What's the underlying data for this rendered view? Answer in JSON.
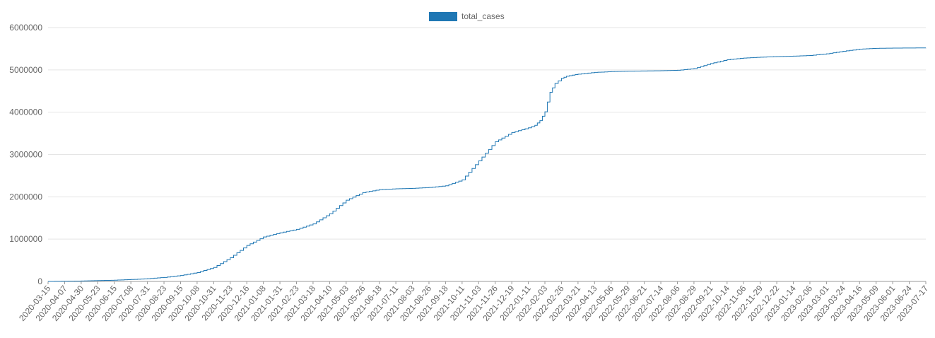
{
  "chart_data": {
    "type": "line",
    "title": "",
    "xlabel": "",
    "ylabel": "",
    "legend": {
      "position": "top-center",
      "label": "total_cases"
    },
    "colors": {
      "series": "#1f77b4",
      "grid": "#e5e5e5",
      "axis": "#999999",
      "text": "#666666"
    },
    "grid": true,
    "ylim": [
      0,
      6000000
    ],
    "yticks": [
      0,
      1000000,
      2000000,
      3000000,
      4000000,
      5000000,
      6000000
    ],
    "xlim": [
      "2020-03-15",
      "2023-07-17"
    ],
    "xticks": [
      "2020-03-15",
      "2020-04-07",
      "2020-04-30",
      "2020-05-23",
      "2020-06-15",
      "2020-07-08",
      "2020-07-31",
      "2020-08-23",
      "2020-09-15",
      "2020-10-08",
      "2020-10-31",
      "2020-11-23",
      "2020-12-16",
      "2021-01-08",
      "2021-01-31",
      "2021-02-23",
      "2021-03-18",
      "2021-04-10",
      "2021-05-03",
      "2021-05-26",
      "2021-06-18",
      "2021-07-11",
      "2021-08-03",
      "2021-08-26",
      "2021-09-18",
      "2021-10-11",
      "2021-11-03",
      "2021-11-26",
      "2021-12-19",
      "2022-01-11",
      "2022-02-03",
      "2022-02-26",
      "2022-03-21",
      "2022-04-13",
      "2022-05-06",
      "2022-05-29",
      "2022-06-21",
      "2022-07-14",
      "2022-08-06",
      "2022-08-29",
      "2022-09-21",
      "2022-10-14",
      "2022-11-06",
      "2022-11-29",
      "2022-12-22",
      "2023-01-14",
      "2023-02-06",
      "2023-03-01",
      "2023-03-24",
      "2023-04-16",
      "2023-05-09",
      "2023-06-01",
      "2023-06-24",
      "2023-07-17"
    ],
    "series": [
      {
        "name": "total_cases",
        "color": "#1f77b4",
        "x": [
          "2020-03-15",
          "2020-04-07",
          "2020-04-30",
          "2020-05-23",
          "2020-06-15",
          "2020-07-08",
          "2020-07-31",
          "2020-08-23",
          "2020-09-15",
          "2020-10-08",
          "2020-10-31",
          "2020-11-23",
          "2020-12-16",
          "2021-01-08",
          "2021-01-31",
          "2021-02-23",
          "2021-03-18",
          "2021-04-10",
          "2021-05-03",
          "2021-05-26",
          "2021-06-18",
          "2021-07-11",
          "2021-08-03",
          "2021-08-26",
          "2021-09-18",
          "2021-10-11",
          "2021-11-03",
          "2021-11-26",
          "2021-12-19",
          "2022-01-11",
          "2022-01-20",
          "2022-01-27",
          "2022-02-03",
          "2022-02-10",
          "2022-02-17",
          "2022-02-26",
          "2022-03-05",
          "2022-03-21",
          "2022-04-13",
          "2022-05-06",
          "2022-05-29",
          "2022-06-21",
          "2022-07-14",
          "2022-08-06",
          "2022-08-29",
          "2022-09-21",
          "2022-10-14",
          "2022-11-06",
          "2022-11-29",
          "2022-12-22",
          "2023-01-14",
          "2023-02-06",
          "2023-03-01",
          "2023-03-24",
          "2023-04-16",
          "2023-05-09",
          "2023-06-01",
          "2023-06-24",
          "2023-07-17"
        ],
        "y": [
          0,
          5000,
          10000,
          20000,
          30000,
          45000,
          65000,
          95000,
          140000,
          210000,
          330000,
          560000,
          850000,
          1050000,
          1150000,
          1230000,
          1360000,
          1600000,
          1920000,
          2100000,
          2170000,
          2190000,
          2200000,
          2220000,
          2260000,
          2400000,
          2850000,
          3300000,
          3520000,
          3630000,
          3690000,
          3800000,
          4010000,
          4470000,
          4680000,
          4800000,
          4850000,
          4900000,
          4940000,
          4960000,
          4970000,
          4975000,
          4980000,
          4990000,
          5030000,
          5150000,
          5240000,
          5280000,
          5300000,
          5315000,
          5325000,
          5340000,
          5380000,
          5440000,
          5490000,
          5510000,
          5515000,
          5518000,
          5520000
        ],
        "step": true
      }
    ]
  }
}
